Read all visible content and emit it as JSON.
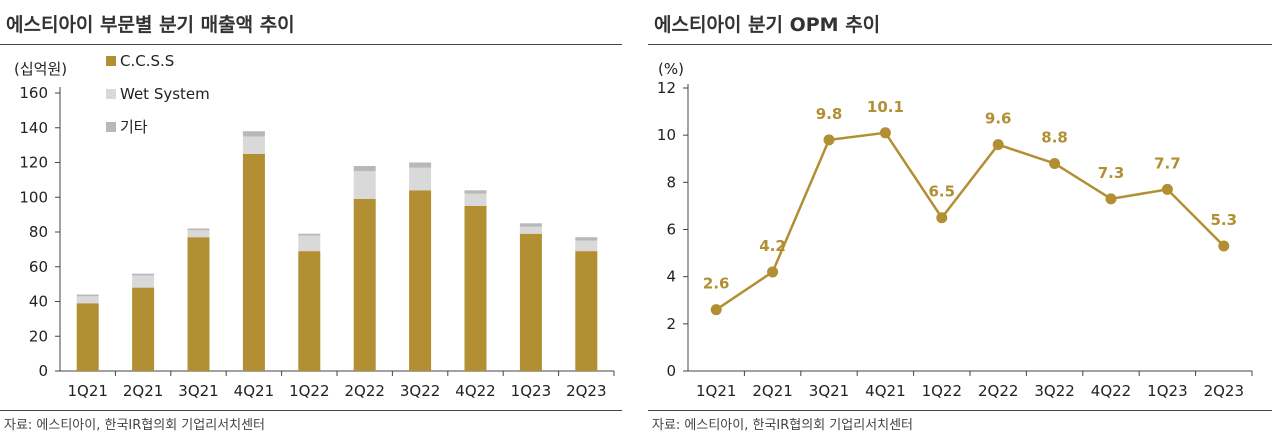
{
  "charts": {
    "left": {
      "title": "에스티아이 부문별 분기 매출액 추이",
      "unit": "(십억원)",
      "source": "자료: 에스티아이, 한국IR협의회 기업리서치센터"
    },
    "right": {
      "title": "에스티아이 분기 OPM 추이",
      "unit": "(%)",
      "source": "자료: 에스티아이, 한국IR협의회 기업리서치센터"
    }
  },
  "colors": {
    "ccss": "#b18f32",
    "wet": "#d9d9d9",
    "other": "#b8b8b8",
    "line": "#b18f32",
    "label": "#b18f32"
  },
  "chart_data": [
    {
      "type": "bar",
      "stacked": true,
      "title": "에스티아이 부문별 분기 매출액 추이",
      "ylabel": "(십억원)",
      "categories": [
        "1Q21",
        "2Q21",
        "3Q21",
        "4Q21",
        "1Q22",
        "2Q22",
        "3Q22",
        "4Q22",
        "1Q23",
        "2Q23"
      ],
      "series": [
        {
          "name": "C.C.S.S",
          "values": [
            39,
            48,
            77,
            125,
            69,
            99,
            104,
            95,
            79,
            69
          ]
        },
        {
          "name": "Wet System",
          "values": [
            4,
            7,
            4,
            10,
            9,
            16,
            13,
            7,
            4,
            6
          ]
        },
        {
          "name": "기타",
          "values": [
            1,
            1,
            1,
            3,
            1,
            3,
            3,
            2,
            2,
            2
          ]
        }
      ],
      "ylim": [
        0,
        160
      ],
      "yticks": [
        0,
        20,
        40,
        60,
        80,
        100,
        120,
        140,
        160
      ],
      "legend": "top-left",
      "grid": false
    },
    {
      "type": "line",
      "title": "에스티아이 분기 OPM 추이",
      "ylabel": "(%)",
      "categories": [
        "1Q21",
        "2Q21",
        "3Q21",
        "4Q21",
        "1Q22",
        "2Q22",
        "3Q22",
        "4Q22",
        "1Q23",
        "2Q23"
      ],
      "values": [
        2.6,
        4.2,
        9.8,
        10.1,
        6.5,
        9.6,
        8.8,
        7.3,
        7.7,
        5.3
      ],
      "data_labels": [
        "2.6",
        "4.2",
        "9.8",
        "10.1",
        "6.5",
        "9.6",
        "8.8",
        "7.3",
        "7.7",
        "5.3"
      ],
      "ylim": [
        0,
        12
      ],
      "yticks": [
        0,
        2,
        4,
        6,
        8,
        10,
        12
      ],
      "grid": false
    }
  ]
}
